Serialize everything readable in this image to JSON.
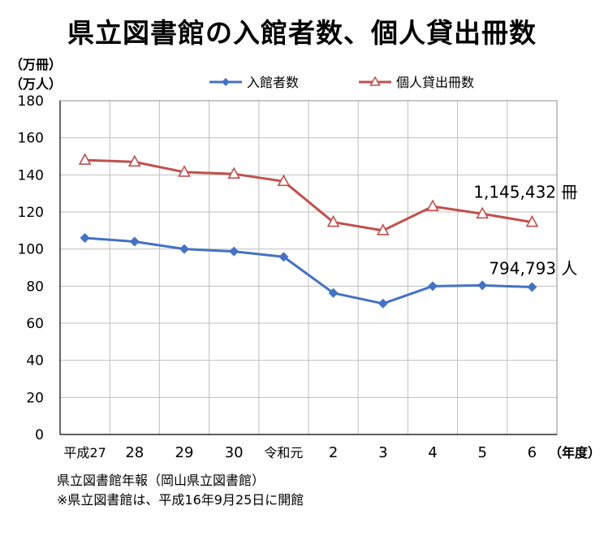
{
  "chart_data": {
    "type": "line",
    "title": "県立図書館の入館者数、個人貸出冊数",
    "ylabel_unit_1": "（万冊）",
    "ylabel_unit_2": "（万人）",
    "xlabel_unit": "（年度）",
    "categories": [
      "平成27",
      "28",
      "29",
      "30",
      "令和元",
      "2",
      "3",
      "4",
      "5",
      "6"
    ],
    "ylim": [
      0,
      180
    ],
    "yticks": [
      0,
      20,
      40,
      60,
      80,
      100,
      120,
      140,
      160,
      180
    ],
    "grid": true,
    "legend_position": "top",
    "series": [
      {
        "name": "入館者数",
        "color": "#4472c4",
        "marker": "diamond",
        "values": [
          106,
          104,
          100,
          98.7,
          95.8,
          76.3,
          70.6,
          80,
          80.4,
          79.5
        ],
        "end_label": "794,793 人"
      },
      {
        "name": "個人貸出冊数",
        "color": "#c0504d",
        "marker": "triangle-open",
        "values": [
          148,
          147,
          141.5,
          140.5,
          136.5,
          114.5,
          110,
          123,
          119,
          114.5
        ],
        "end_label": "1,145,432 冊"
      }
    ]
  },
  "source_note": "県立図書館年報（岡山県立図書館）",
  "footnote": "※県立図書館は、平成16年9月25日に開館"
}
